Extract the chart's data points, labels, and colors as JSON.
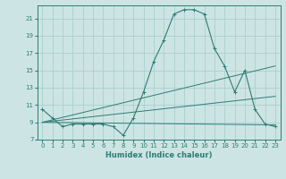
{
  "title": "",
  "xlabel": "Humidex (Indice chaleur)",
  "ylabel": "",
  "background_color": "#cde4e4",
  "grid_color": "#aacfcf",
  "line_color": "#2d7d73",
  "xlim": [
    -0.5,
    23.5
  ],
  "ylim": [
    7,
    22.5
  ],
  "yticks": [
    7,
    9,
    11,
    13,
    15,
    17,
    19,
    21
  ],
  "xticks": [
    0,
    1,
    2,
    3,
    4,
    5,
    6,
    7,
    8,
    9,
    10,
    11,
    12,
    13,
    14,
    15,
    16,
    17,
    18,
    19,
    20,
    21,
    22,
    23
  ],
  "series": [
    {
      "x": [
        0,
        1,
        2,
        3,
        4,
        5,
        6,
        7,
        8,
        9,
        10,
        11,
        12,
        13,
        14,
        15,
        16,
        17,
        18,
        19,
        20,
        21,
        22,
        23
      ],
      "y": [
        10.5,
        9.5,
        8.5,
        8.8,
        8.8,
        8.8,
        8.8,
        8.5,
        7.5,
        9.5,
        12.5,
        16.0,
        18.5,
        21.5,
        22.0,
        22.0,
        21.5,
        17.5,
        15.5,
        12.5,
        15.0,
        10.5,
        8.8,
        8.5
      ],
      "marker": true
    },
    {
      "x": [
        0,
        23
      ],
      "y": [
        9.0,
        15.5
      ],
      "marker": false
    },
    {
      "x": [
        0,
        23
      ],
      "y": [
        9.0,
        12.0
      ],
      "marker": false
    },
    {
      "x": [
        0,
        23
      ],
      "y": [
        9.0,
        8.7
      ],
      "marker": false
    }
  ]
}
